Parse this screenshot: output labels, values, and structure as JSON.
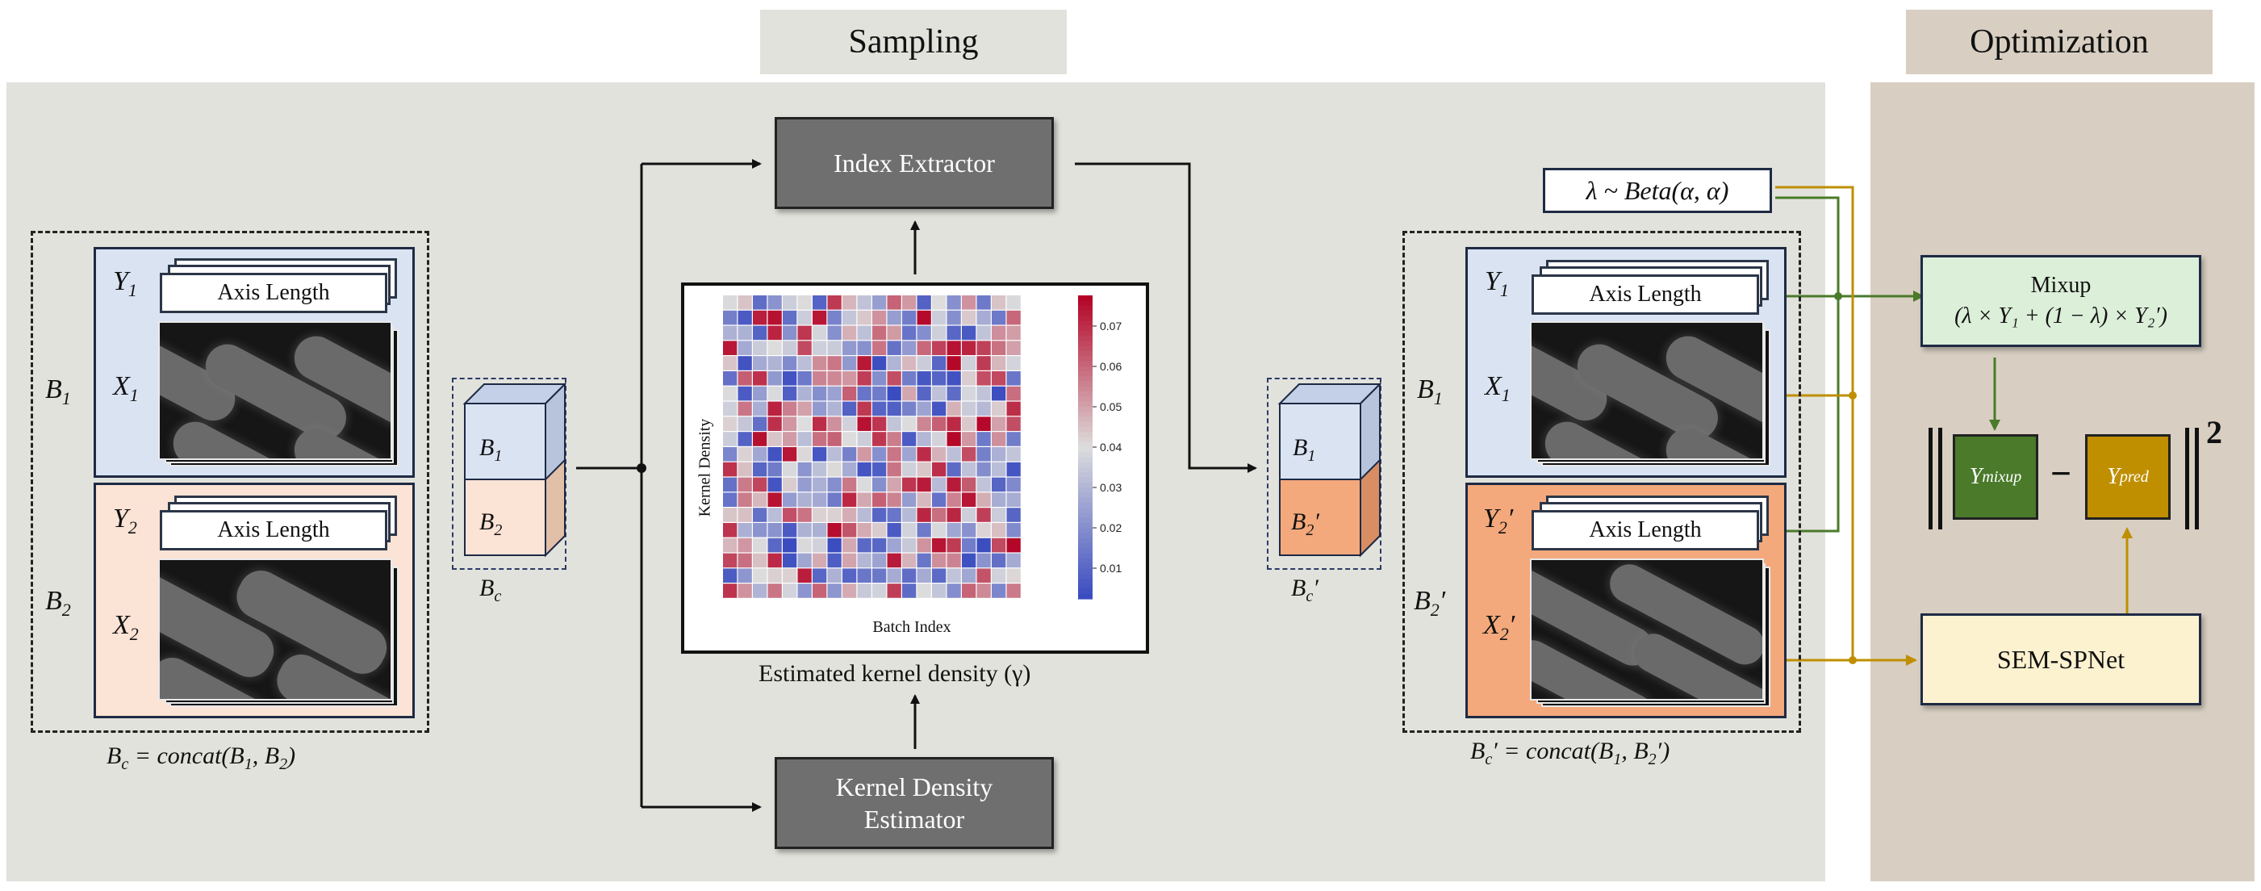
{
  "headers": {
    "sampling": "Sampling",
    "optimization": "Optimization"
  },
  "batch_left": {
    "b1_label": "B",
    "b1_sub": "1",
    "y1_label": "Y",
    "y1_sub": "1",
    "x1_label": "X",
    "x1_sub": "1",
    "b2_label": "B",
    "b2_sub": "2",
    "y2_label": "Y",
    "y2_sub": "2",
    "x2_label": "X",
    "x2_sub": "2",
    "axis_length": "Axis Length",
    "equation": "B",
    "equation_sub": "c",
    "equation_rest": " = concat(B",
    "equation_s1": "1",
    "equation_mid": ", B",
    "equation_s2": "2",
    "equation_end": ")"
  },
  "cube_left": {
    "top": "B",
    "top_sub": "1",
    "bottom": "B",
    "bottom_sub": "2",
    "caption": "B",
    "caption_sub": "c"
  },
  "index_extractor": "Index Extractor",
  "kde": {
    "line1": "Kernel Density",
    "line2": "Estimator"
  },
  "heatmap": {
    "ylabel": "Kernel Density",
    "xlabel": "Batch Index",
    "caption": "Estimated kernel density (γ)",
    "colorbar_ticks": [
      "0.07",
      "0.06",
      "0.05",
      "0.04",
      "0.03",
      "0.02",
      "0.01"
    ],
    "colors": {
      "low": "#3b4cc0",
      "mid": "#dddddd",
      "high": "#b40426"
    }
  },
  "cube_right": {
    "top": "B",
    "top_sub": "1",
    "bottom": "B",
    "bottom_sub": "2",
    "bottom_prime": "′",
    "caption": "B",
    "caption_sub": "c",
    "caption_prime": "′"
  },
  "batch_right": {
    "b1_label": "B",
    "b1_sub": "1",
    "y1_label": "Y",
    "y1_sub": "1",
    "x1_label": "X",
    "x1_sub": "1",
    "b2_label": "B",
    "b2_sub": "2",
    "b2_prime": "′",
    "y2_label": "Y",
    "y2_sub": "2",
    "y2_prime": "′",
    "x2_label": "X",
    "x2_sub": "2",
    "x2_prime": "′",
    "axis_length": "Axis Length",
    "equation": "B",
    "equation_sub": "c",
    "equation_rest": "′ = concat(B",
    "equation_s1": "1",
    "equation_mid": ", B",
    "equation_s2": "2",
    "equation_end": "′)"
  },
  "lambda": "λ ~ Beta(α, α)",
  "mixup": {
    "title": "Mixup",
    "formula": "(λ × Y₁ + (1 − λ) × Y₂′)"
  },
  "loss": {
    "mixup_label": "Y",
    "mixup_sub": "mixup",
    "minus": "−",
    "pred_label": "Y",
    "pred_sub": "pred",
    "power": "2"
  },
  "sem_spnet": "SEM-SPNet",
  "colors": {
    "panel_sampling": "#e2e2dc",
    "panel_optimization": "#d8cfc2",
    "blue_sub": "#dae3f2",
    "peach_light": "#fbe3d5",
    "peach_dark": "#f3a97c",
    "green": "#4a7a2a",
    "gold": "#bf8f00",
    "grey_box": "#6f6f6f"
  }
}
